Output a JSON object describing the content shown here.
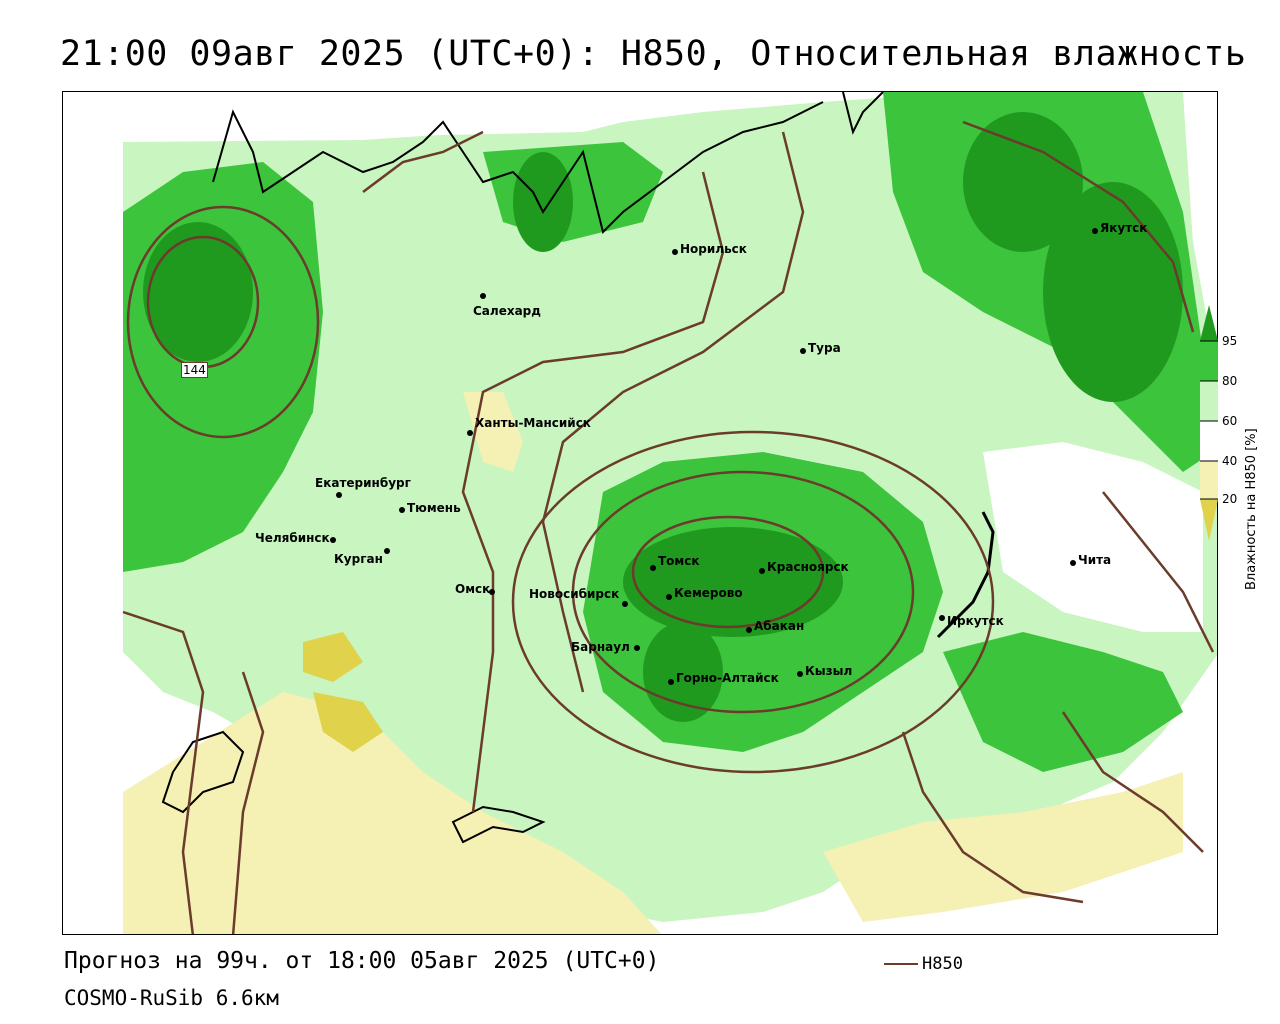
{
  "title": "21:00 09авг 2025 (UTC+0): H850, Относительная влажность",
  "footer": {
    "forecast": "Прогноз на 99ч. от 18:00 05авг 2025 (UTC+0)",
    "model": "COSMO-RuSib 6.6км"
  },
  "legend": {
    "line_label": "H850",
    "line_color": "#6b3b2b"
  },
  "colorbar": {
    "title": "Влажность на H850 [%]",
    "ticks": [
      "95",
      "80",
      "60",
      "40",
      "20"
    ],
    "colors": [
      "#1f9a1f",
      "#3cc43c",
      "#c8f5c0",
      "#ffffff",
      "#f5f0b4",
      "#e0d24a"
    ]
  },
  "contour_labels": [
    "144"
  ],
  "cities": [
    {
      "name": "Норильск"
    },
    {
      "name": "Якутск"
    },
    {
      "name": "Салехард"
    },
    {
      "name": "Тура"
    },
    {
      "name": "Ханты-Мансийск"
    },
    {
      "name": "Екатеринбург"
    },
    {
      "name": "Тюмень"
    },
    {
      "name": "Челябинск"
    },
    {
      "name": "Курган"
    },
    {
      "name": "Омск"
    },
    {
      "name": "Новосибирск"
    },
    {
      "name": "Томск"
    },
    {
      "name": "Кемерово"
    },
    {
      "name": "Красноярск"
    },
    {
      "name": "Абакан"
    },
    {
      "name": "Барнаул"
    },
    {
      "name": "Горно-Алтайск"
    },
    {
      "name": "Кызыл"
    },
    {
      "name": "Иркутск"
    },
    {
      "name": "Чита"
    }
  ]
}
